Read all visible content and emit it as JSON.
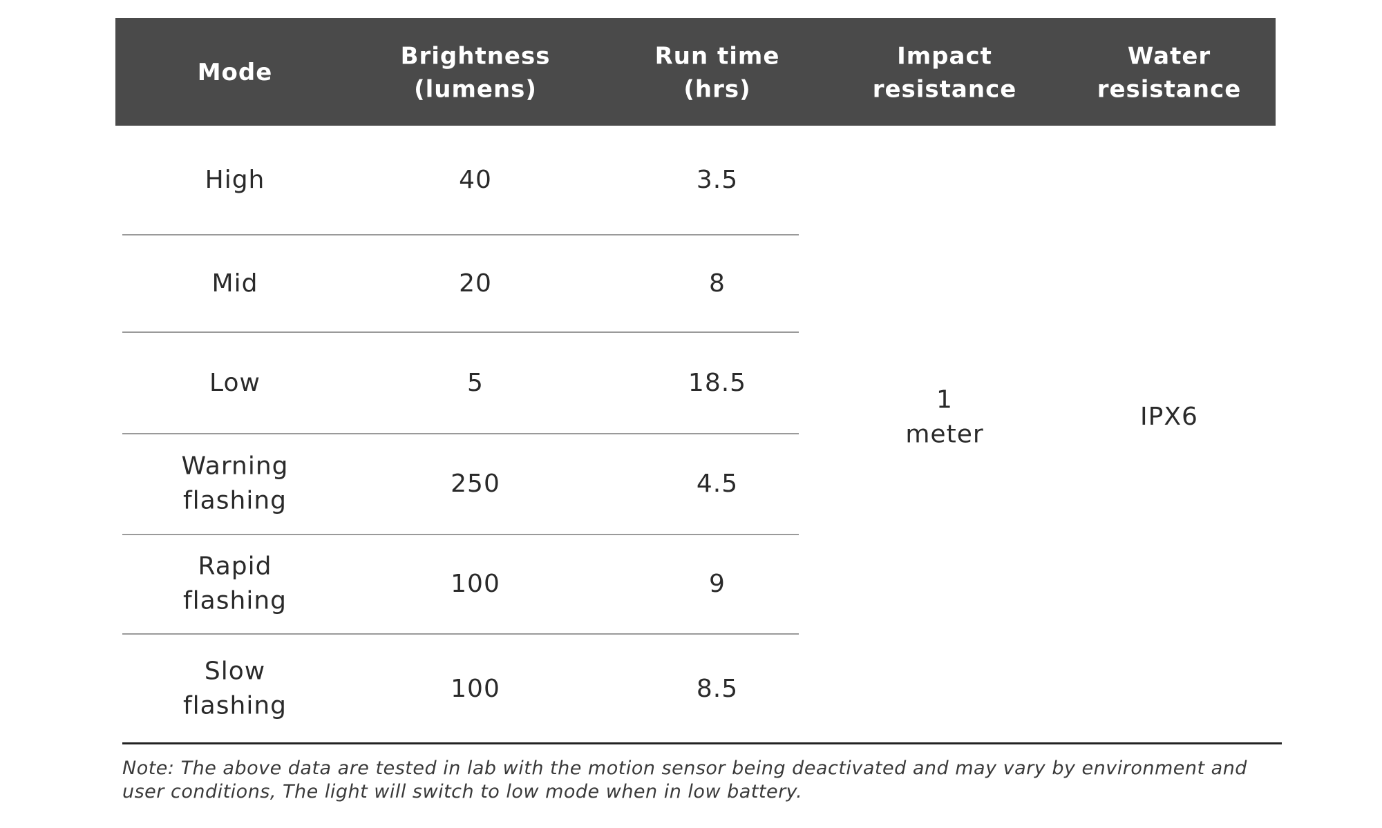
{
  "table": {
    "header": [
      "Mode",
      "Brightness\n(lumens)",
      "Run time\n(hrs)",
      "Impact\nresistance",
      "Water\nresistance"
    ],
    "rows": [
      [
        "High",
        "40",
        "3.5"
      ],
      [
        "Mid",
        "20",
        "8"
      ],
      [
        "Low",
        "5",
        "18.5"
      ],
      [
        "Warning\nflashing",
        "250",
        "4.5"
      ],
      [
        "Rapid\nflashing",
        "100",
        "9"
      ],
      [
        "Slow\nflashing",
        "100",
        "8.5"
      ]
    ],
    "impact_resistance": "1\nmeter",
    "water_resistance": "IPX6"
  },
  "note": "Note: The above data are tested in lab with the motion sensor being deactivated and may vary by environment and user conditions, The light will switch to low mode when in low battery."
}
